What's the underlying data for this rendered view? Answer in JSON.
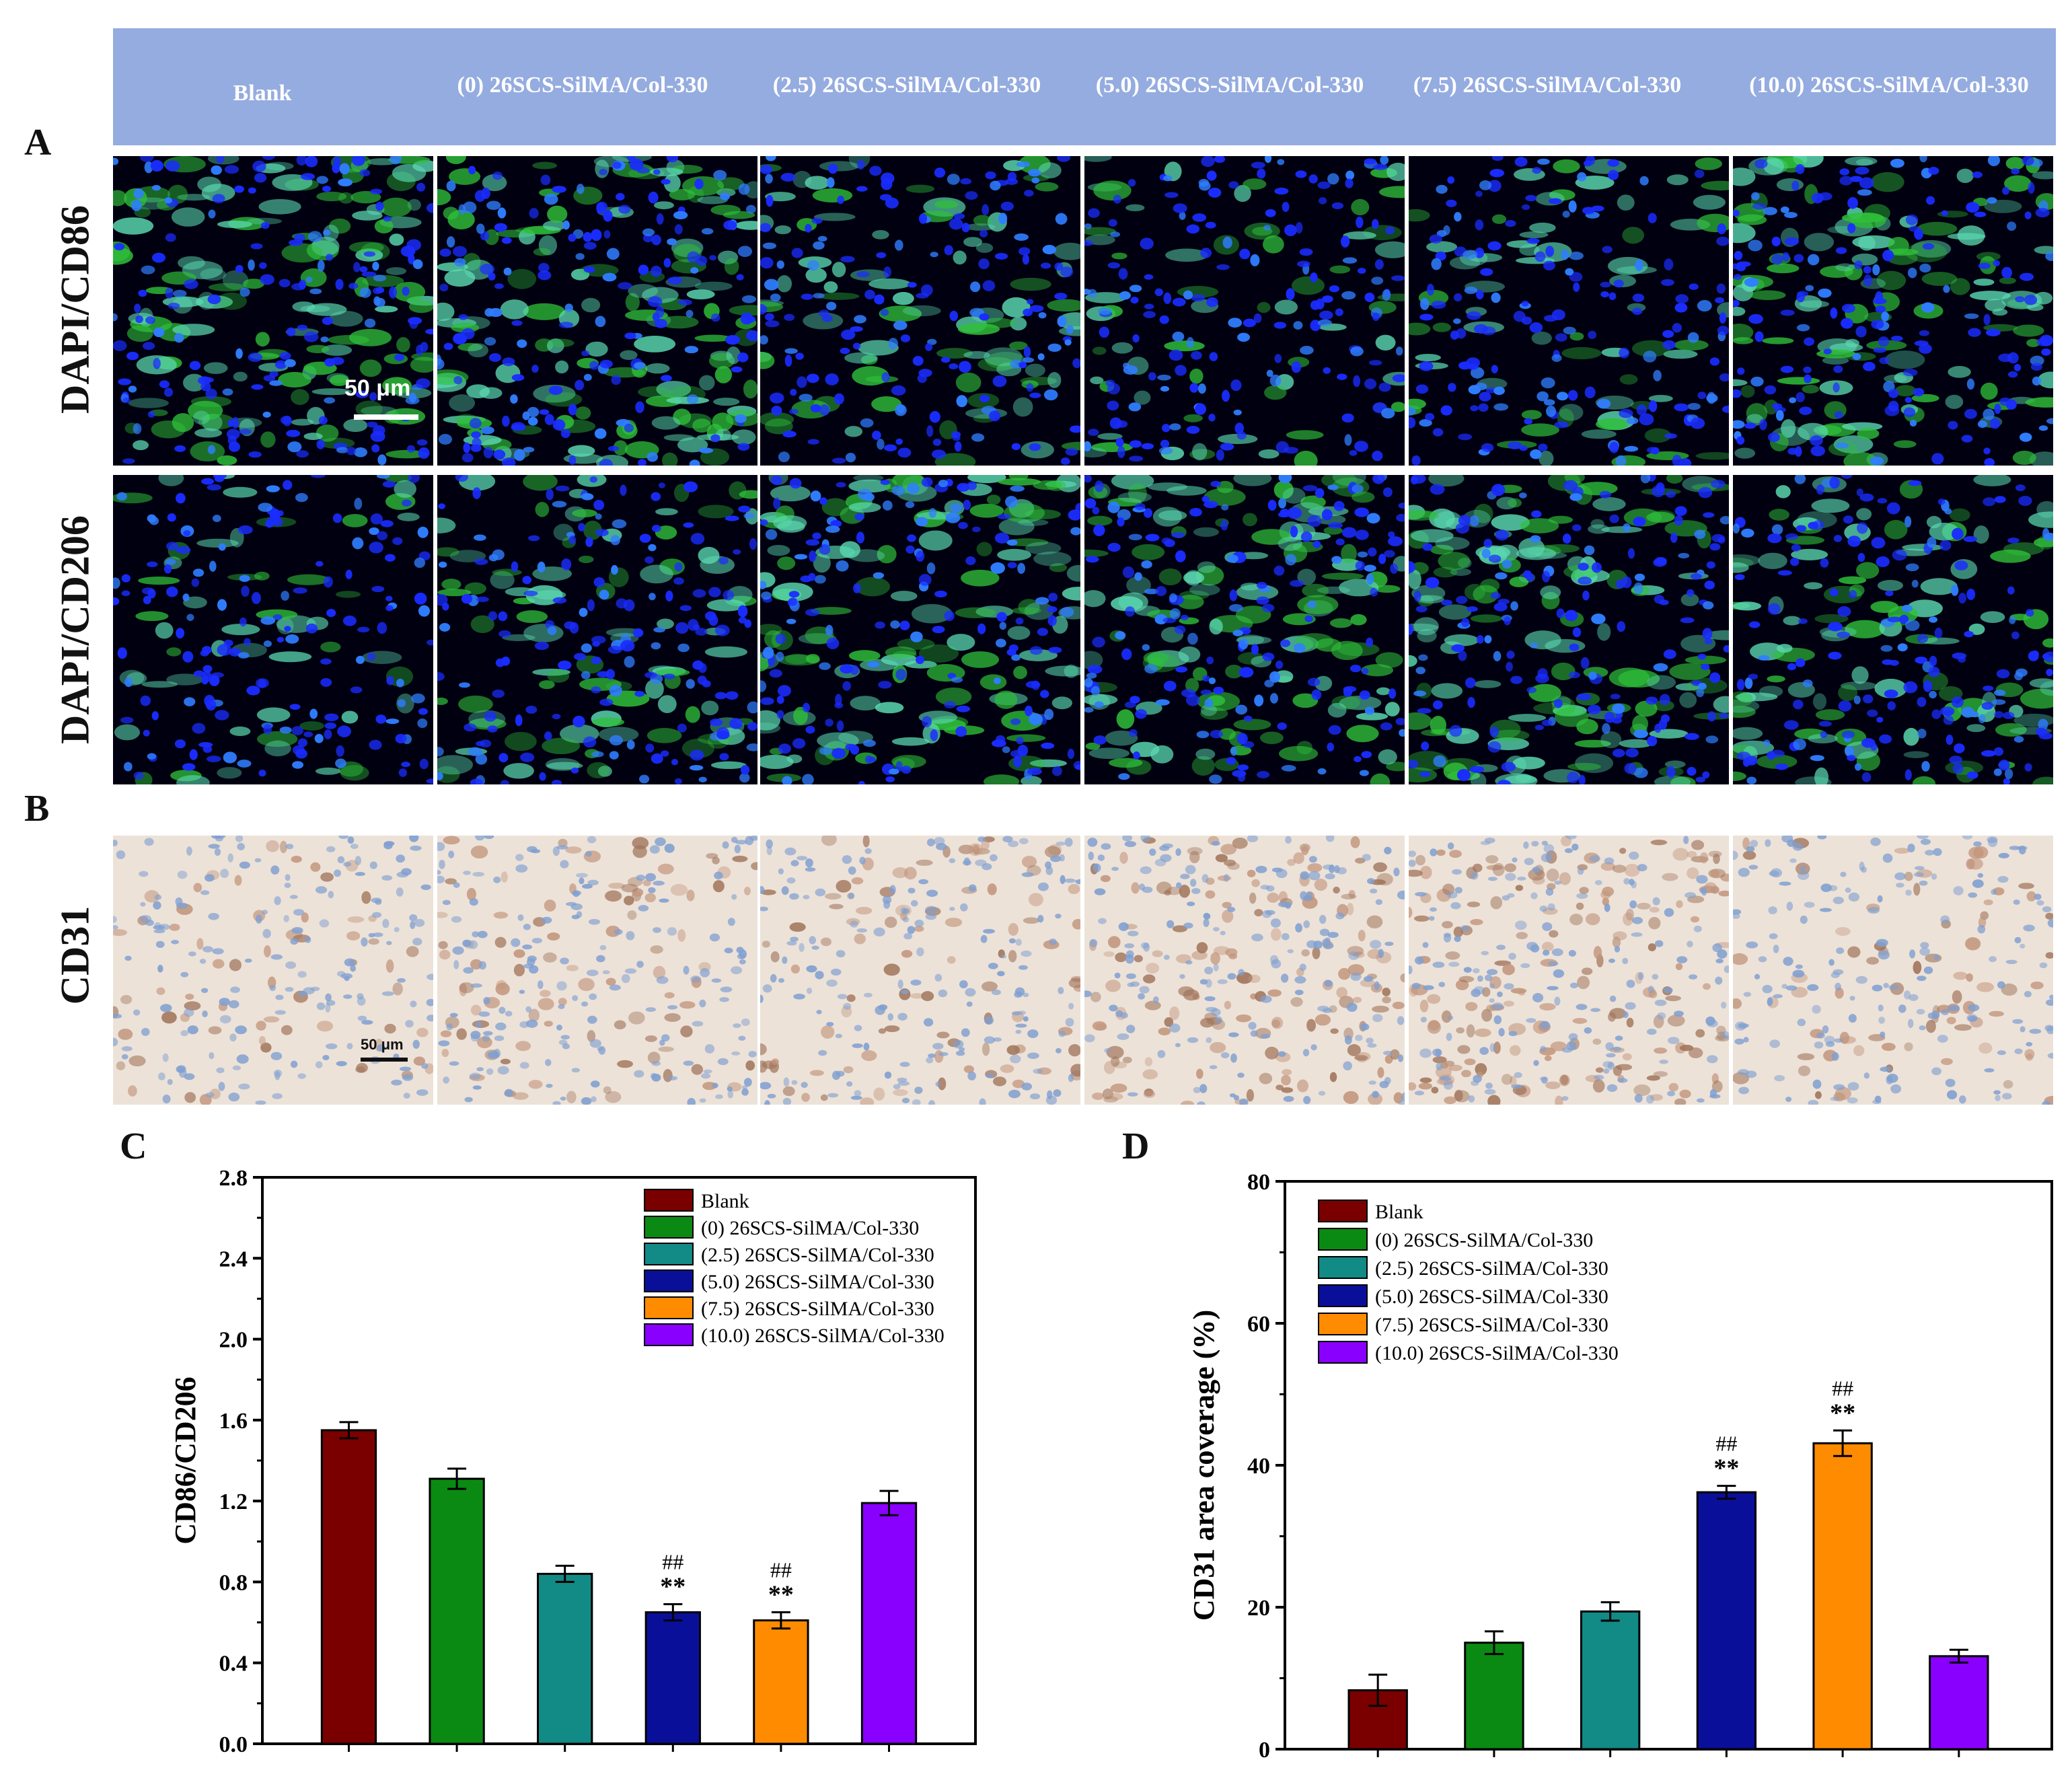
{
  "columns": [
    "Blank",
    "(0) 26SCS-SilMA/Col-330",
    "(2.5) 26SCS-SilMA/Col-330",
    "(5.0) 26SCS-SilMA/Col-330",
    "(7.5) 26SCS-SilMA/Col-330",
    "(10.0) 26SCS-SilMA/Col-330"
  ],
  "panels": {
    "a": "A",
    "b": "B",
    "c": "C",
    "d": "D"
  },
  "rows": {
    "cd86": "DAPI/CD86",
    "cd206": "DAPI/CD206",
    "cd31": "CD31"
  },
  "scale_bar": {
    "fluorescence": "50 μm",
    "ihc": "50 μm"
  },
  "colors": {
    "series": [
      "#7a0000",
      "#0a8a12",
      "#128a86",
      "#0a0f9a",
      "#ff8c00",
      "#8a00ff"
    ],
    "header_band": "#95ace0",
    "dapi": "#1530ff",
    "marker": "#3cd040"
  },
  "chart_data": [
    {
      "type": "bar",
      "panel": "C",
      "categories": [
        "Blank",
        "(0) 26SCS-SilMA/Col-330",
        "(2.5) 26SCS-SilMA/Col-330",
        "(5.0) 26SCS-SilMA/Col-330",
        "(7.5) 26SCS-SilMA/Col-330",
        "(10.0) 26SCS-SilMA/Col-330"
      ],
      "values": [
        1.55,
        1.31,
        0.84,
        0.65,
        0.61,
        1.19
      ],
      "errors": [
        0.04,
        0.05,
        0.04,
        0.04,
        0.04,
        0.06
      ],
      "annotations": [
        "",
        "",
        "",
        "##\n**",
        "##\n**",
        ""
      ],
      "ylabel": "CD86/CD206",
      "xlabel": "",
      "ylim": [
        0,
        2.8
      ],
      "yticks": [
        "0.0",
        "0.4",
        "0.8",
        "1.2",
        "1.6",
        "2.0",
        "2.4",
        "2.8"
      ],
      "legend": [
        "Blank",
        "(0) 26SCS-SilMA/Col-330",
        "(2.5) 26SCS-SilMA/Col-330",
        "(5.0) 26SCS-SilMA/Col-330",
        "(7.5) 26SCS-SilMA/Col-330",
        "(10.0) 26SCS-SilMA/Col-330"
      ],
      "legend_position": "top-right",
      "grid": false
    },
    {
      "type": "bar",
      "panel": "D",
      "categories": [
        "Blank",
        "(0) 26SCS-SilMA/Col-330",
        "(2.5) 26SCS-SilMA/Col-330",
        "(5.0) 26SCS-SilMA/Col-330",
        "(7.5) 26SCS-SilMA/Col-330",
        "(10.0) 26SCS-SilMA/Col-330"
      ],
      "values": [
        8.3,
        15.0,
        19.4,
        36.2,
        43.1,
        13.1
      ],
      "errors": [
        2.2,
        1.6,
        1.3,
        0.9,
        1.8,
        0.9
      ],
      "annotations": [
        "",
        "",
        "",
        "##\n**",
        "##\n**",
        ""
      ],
      "ylabel": "CD31 area coverage (%)",
      "xlabel": "",
      "ylim": [
        0,
        80
      ],
      "yticks": [
        "0",
        "20",
        "40",
        "60",
        "80"
      ],
      "legend": [
        "Blank",
        "(0) 26SCS-SilMA/Col-330",
        "(2.5) 26SCS-SilMA/Col-330",
        "(5.0) 26SCS-SilMA/Col-330",
        "(7.5) 26SCS-SilMA/Col-330",
        "(10.0) 26SCS-SilMA/Col-330"
      ],
      "legend_position": "top-left",
      "grid": false
    }
  ]
}
